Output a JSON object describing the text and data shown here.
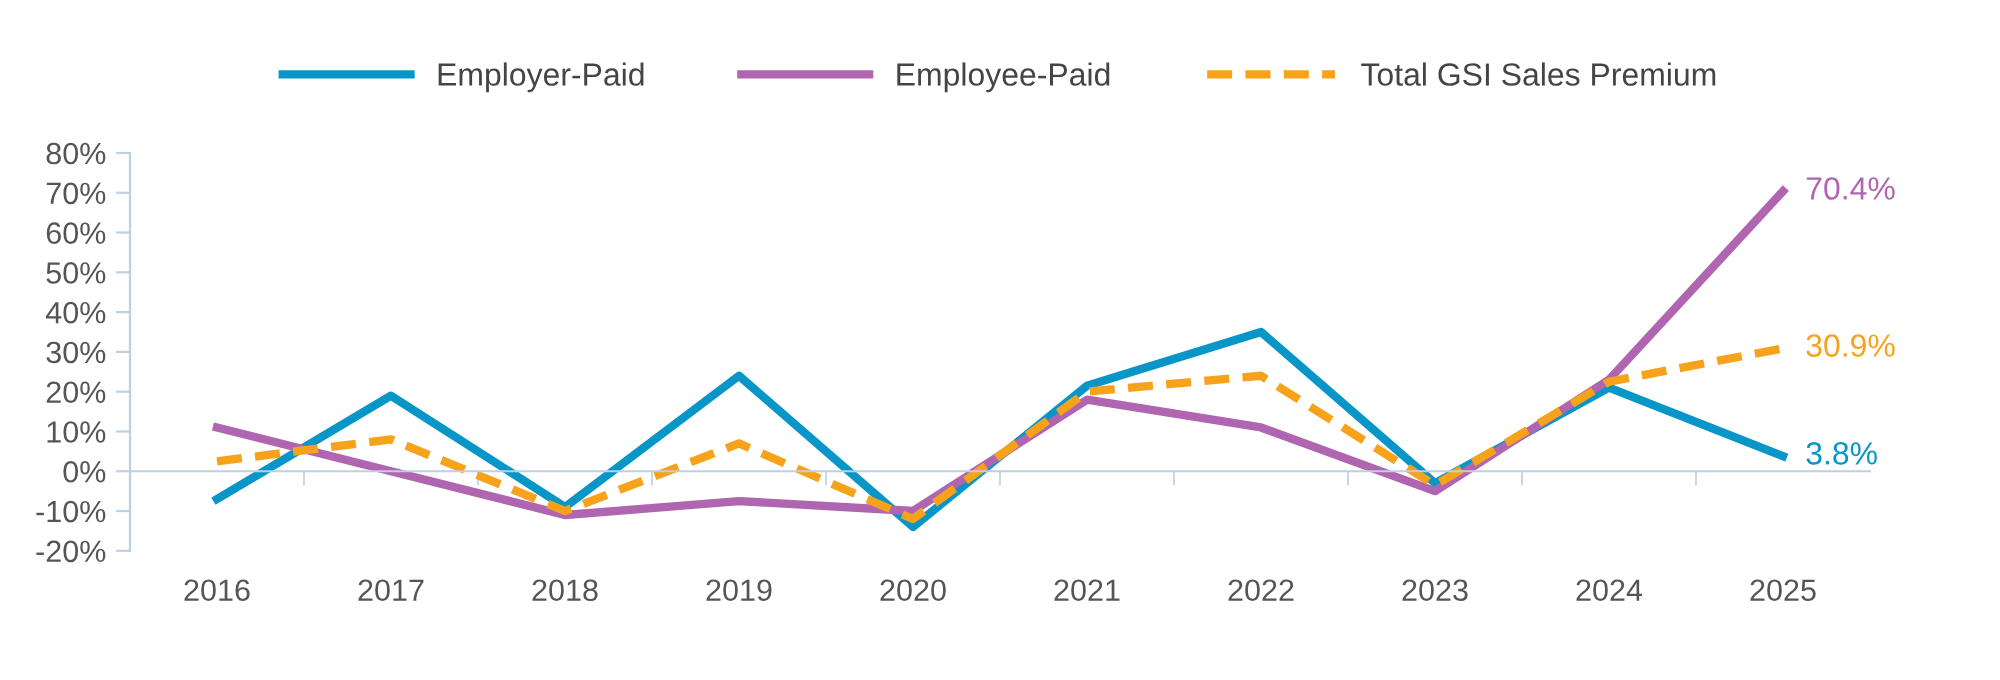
{
  "chart_data": {
    "type": "line",
    "categories": [
      "2016",
      "2017",
      "2018",
      "2019",
      "2020",
      "2021",
      "2022",
      "2023",
      "2024",
      "2025"
    ],
    "series": [
      {
        "name": "Employer-Paid",
        "color": "#0896c8",
        "values": [
          -7,
          19,
          -9,
          24,
          -14,
          21.5,
          35,
          -3,
          21,
          3.8
        ]
      },
      {
        "name": "Employee-Paid",
        "color": "#b065b0",
        "values": [
          11,
          0,
          -11,
          -7.5,
          -10,
          18,
          11,
          -5,
          23,
          70.4
        ]
      },
      {
        "name": "Total GSI Sales Premium",
        "color": "#f7a21b",
        "line_style": "dashed",
        "values": [
          2.5,
          8,
          -10,
          7,
          -12,
          20,
          24,
          -3.5,
          22.5,
          30.9
        ]
      }
    ],
    "annotations": [
      {
        "text": "3.8%",
        "x": "2025",
        "y": 3.8
      },
      {
        "text": "70.4%",
        "x": "2025",
        "y": 70.4
      },
      {
        "text": "30.9%",
        "x": "2025",
        "y": 30.9
      }
    ],
    "ylim": [
      -20,
      80
    ],
    "yticks": [
      {
        "value": -20,
        "label": "-20%"
      },
      {
        "value": -10,
        "label": "-10%"
      },
      {
        "value": 0,
        "label": "0%"
      },
      {
        "value": 10,
        "label": "10%"
      },
      {
        "value": 20,
        "label": "20%"
      },
      {
        "value": 30,
        "label": "30%"
      },
      {
        "value": 40,
        "label": "40%"
      },
      {
        "value": 50,
        "label": "50%"
      },
      {
        "value": 60,
        "label": "60%"
      },
      {
        "value": 70,
        "label": "70%"
      },
      {
        "value": 80,
        "label": "80%"
      }
    ],
    "legend": "top",
    "marker": "none"
  }
}
